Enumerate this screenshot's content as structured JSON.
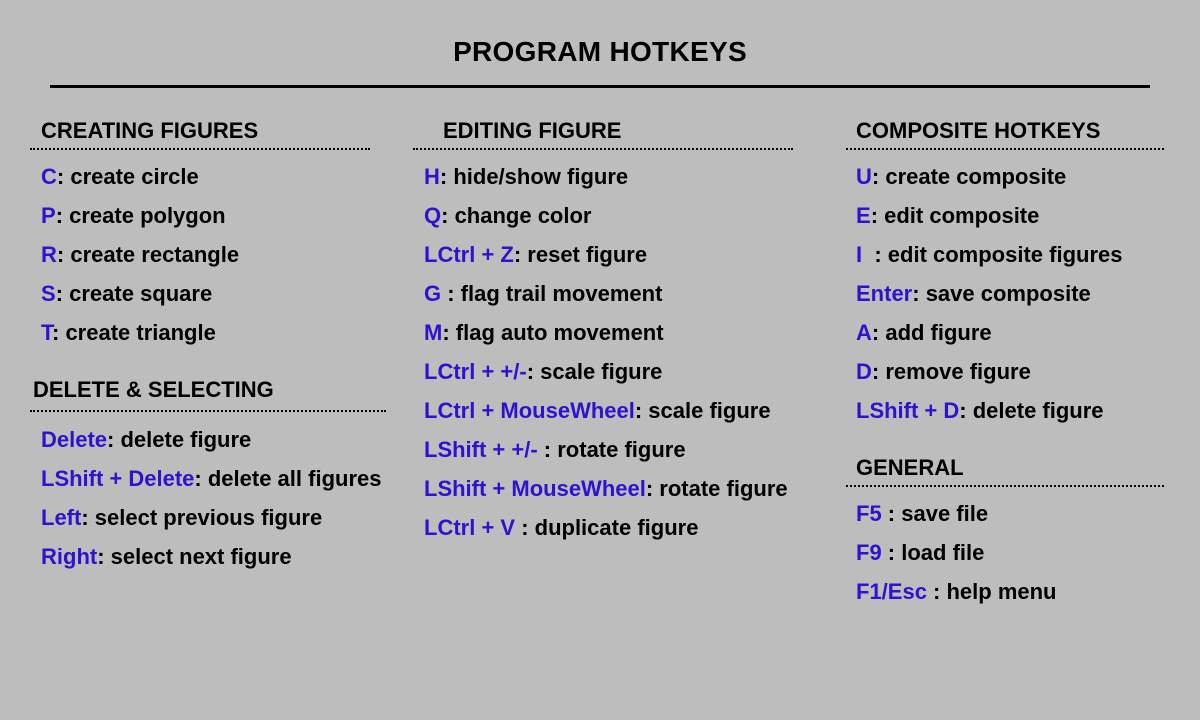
{
  "title": "PROGRAM HOTKEYS",
  "colors": {
    "background": "#bdbdbd",
    "key": "#2d12d0",
    "text": "#000000"
  },
  "sections": {
    "creating": {
      "header": "CREATING FIGURES",
      "items": [
        {
          "key": "C",
          "desc": ": create circle"
        },
        {
          "key": "P",
          "desc": ": create polygon"
        },
        {
          "key": "R",
          "desc": ": create rectangle"
        },
        {
          "key": "S",
          "desc": ": create square"
        },
        {
          "key": "T",
          "desc": ": create triangle"
        }
      ]
    },
    "delete": {
      "header": "DELETE & SELECTING",
      "items": [
        {
          "key": "Delete",
          "desc": ": delete figure"
        },
        {
          "key": "LShift + Delete",
          "desc": ": delete all figures"
        },
        {
          "key": "Left",
          "desc": ": select previous figure"
        },
        {
          "key": "Right",
          "desc": ": select next figure"
        }
      ]
    },
    "editing": {
      "header": "EDITING FIGURE",
      "items": [
        {
          "key": "H",
          "desc": ": hide/show figure"
        },
        {
          "key": "Q",
          "desc": ": change color"
        },
        {
          "key": "LCtrl + Z",
          "desc": ": reset figure"
        },
        {
          "key": "G",
          "desc": " : flag trail movement"
        },
        {
          "key": "M",
          "desc": ": flag auto movement"
        },
        {
          "key": "LCtrl + +/-",
          "desc": ": scale figure"
        },
        {
          "key": "LCtrl + MouseWheel",
          "desc": ": scale figure"
        },
        {
          "key": "LShift + +/-",
          "desc": " : rotate figure"
        },
        {
          "key": "LShift + MouseWheel",
          "desc": ": rotate figure"
        },
        {
          "key": "LCtrl + V",
          "desc": " : duplicate figure"
        }
      ]
    },
    "composite": {
      "header": "COMPOSITE HOTKEYS",
      "items": [
        {
          "key": "U",
          "desc": ": create composite"
        },
        {
          "key": "E",
          "desc": ": edit composite"
        },
        {
          "key": "I",
          "desc": "  : edit composite figures"
        },
        {
          "key": "Enter",
          "desc": ": save composite"
        },
        {
          "key": "A",
          "desc": ": add figure"
        },
        {
          "key": "D",
          "desc": ": remove figure"
        },
        {
          "key": "LShift + D",
          "desc": ": delete figure"
        }
      ]
    },
    "general": {
      "header": "GENERAL",
      "items": [
        {
          "key": "F5",
          "desc": " : save file"
        },
        {
          "key": "F9",
          "desc": " : load file"
        },
        {
          "key": "F1/Esc",
          "desc": " : help menu"
        }
      ]
    }
  }
}
